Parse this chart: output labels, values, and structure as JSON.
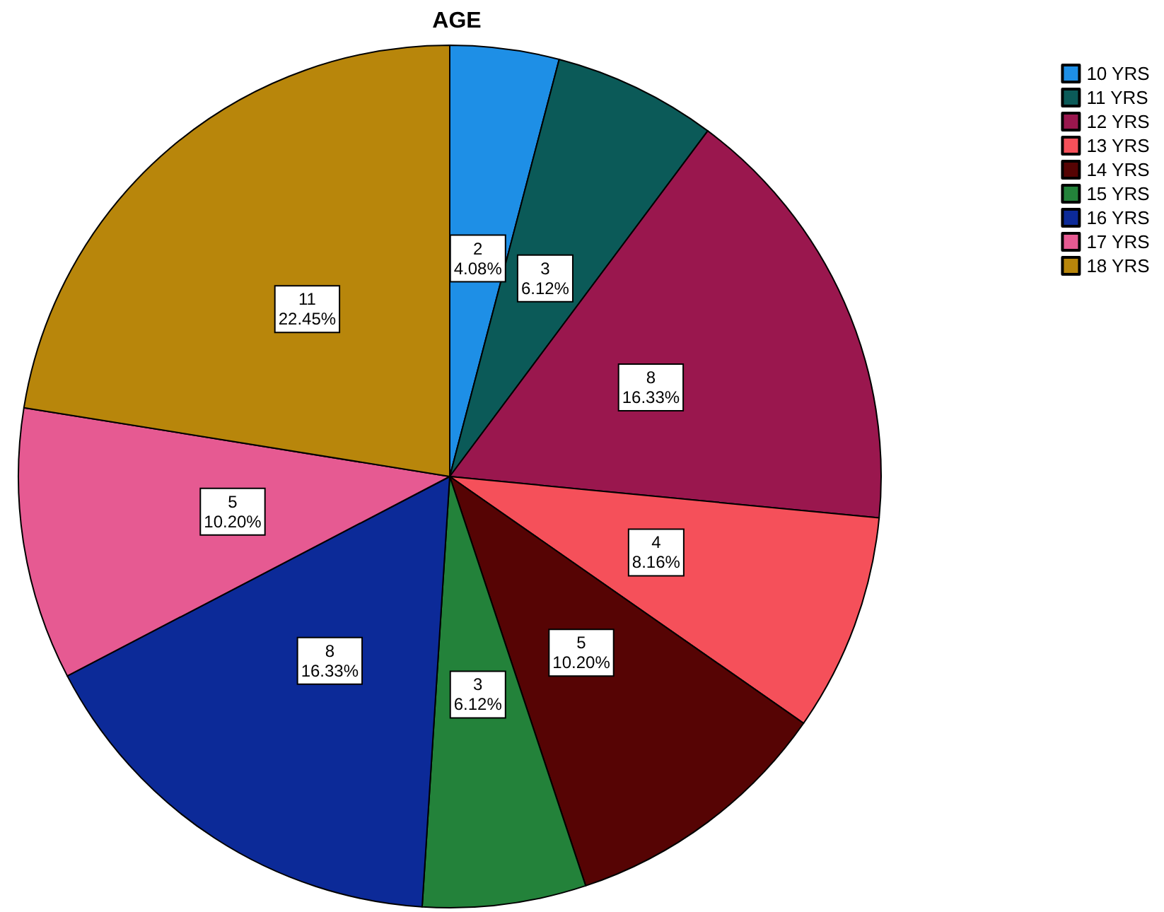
{
  "chart_data": {
    "type": "pie",
    "title": "AGE",
    "categories": [
      "10 YRS",
      "11 YRS",
      "12 YRS",
      "13 YRS",
      "14 YRS",
      "15 YRS",
      "16 YRS",
      "17 YRS",
      "18 YRS"
    ],
    "values": [
      2,
      3,
      8,
      4,
      5,
      3,
      8,
      5,
      11
    ],
    "value_labels": [
      "2\n4.08%",
      "3\n6.12%",
      "8\n16.33%",
      "4\n8.16%",
      "5\n10.20%",
      "3\n6.12%",
      "8\n16.33%",
      "5\n10.20%",
      "11\n22.45%"
    ],
    "colors": [
      "#1e8fe6",
      "#0b5a58",
      "#9a174e",
      "#f5505a",
      "#560404",
      "#23823a",
      "#0c2a98",
      "#e65a92",
      "#b8860b"
    ],
    "legend": "top right"
  }
}
